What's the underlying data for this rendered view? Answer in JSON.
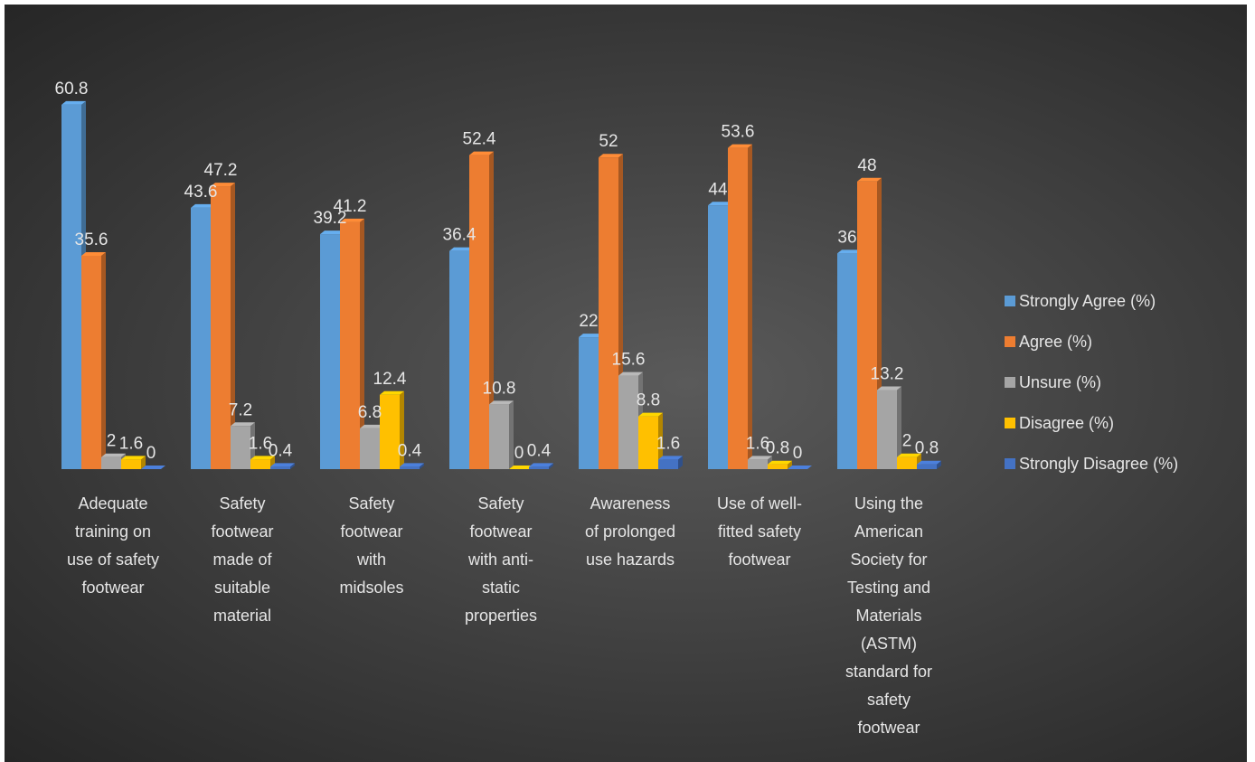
{
  "chart_data": {
    "type": "bar",
    "categories": [
      "Adequate training on use of safety footwear",
      "Safety footwear made of suitable material",
      "Safety footwear with midsoles",
      "Safety footwear with anti-static properties",
      "Awareness of prolonged use hazards",
      "Use of well-fitted safety footwear",
      "Using the American Society for Testing and Materials (ASTM) standard for safety footwear"
    ],
    "category_lines": [
      [
        "Adequate",
        "training on",
        "use of safety",
        "footwear"
      ],
      [
        "Safety",
        "footwear",
        "made of",
        "suitable",
        "material"
      ],
      [
        "Safety",
        "footwear",
        "with",
        "midsoles"
      ],
      [
        "Safety",
        "footwear",
        "with anti-",
        "static",
        "properties"
      ],
      [
        "Awareness",
        "of prolonged",
        "use hazards"
      ],
      [
        "Use of well-",
        "fitted safety",
        "footwear"
      ],
      [
        "Using the",
        "American",
        "Society for",
        "Testing and",
        "Materials",
        "(ASTM)",
        "standard for",
        "safety",
        "footwear"
      ]
    ],
    "series": [
      {
        "name": "Strongly Agree (%)",
        "color": "#5b9bd5",
        "values": [
          60.8,
          43.6,
          39.2,
          36.4,
          22,
          44,
          36
        ]
      },
      {
        "name": "Agree (%)",
        "color": "#ed7d31",
        "values": [
          35.6,
          47.2,
          41.2,
          52.4,
          52,
          53.6,
          48
        ]
      },
      {
        "name": "Unsure (%)",
        "color": "#a5a5a5",
        "values": [
          2,
          7.2,
          6.8,
          10.8,
          15.6,
          1.6,
          13.2
        ]
      },
      {
        "name": "Disagree (%)",
        "color": "#ffc000",
        "values": [
          1.6,
          1.6,
          12.4,
          0,
          8.8,
          0.8,
          2
        ]
      },
      {
        "name": "Strongly Disagree (%)",
        "color": "#4472c4",
        "values": [
          0,
          0.4,
          0.4,
          0.4,
          1.6,
          0,
          0.8
        ]
      }
    ],
    "ylim": [
      0,
      70
    ],
    "legend": "right",
    "grid": false,
    "data_labels": true,
    "style": "3d-clustered-column"
  }
}
